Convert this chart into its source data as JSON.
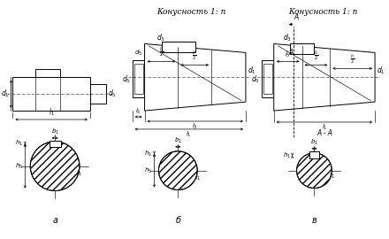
{
  "title_b": "Конусность 1: n",
  "title_v": "Конусность 1: n",
  "label_a": "а",
  "label_b": "б",
  "label_v": "в",
  "label_AA": "А - А",
  "bg_color": "#ffffff"
}
